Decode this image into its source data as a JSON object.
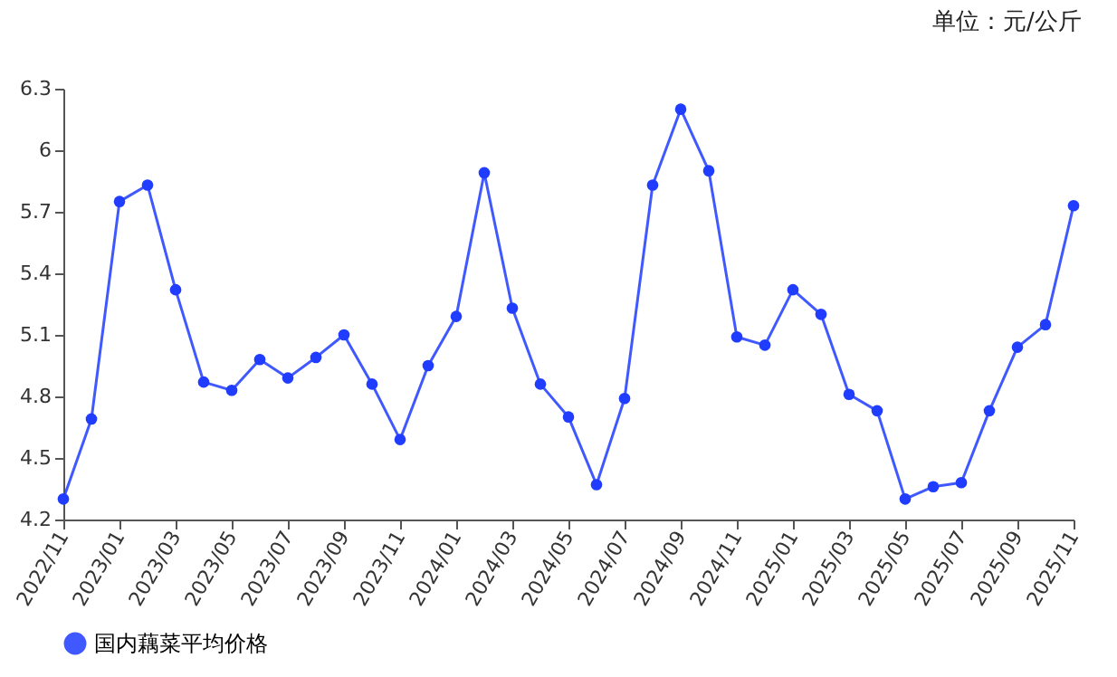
{
  "chart_data": {
    "type": "line",
    "annotations": [
      "单位：元/公斤"
    ],
    "categories": [
      "2022/11",
      null,
      "2023/01",
      null,
      "2023/03",
      null,
      "2023/05",
      null,
      "2023/07",
      null,
      "2023/09",
      null,
      "2023/11",
      null,
      "2024/01",
      null,
      "2024/03",
      null,
      "2024/05",
      null,
      "2024/07",
      null,
      "2024/09",
      null,
      "2024/11",
      null,
      "2025/01",
      null,
      "2025/03",
      null,
      "2025/05",
      null,
      "2025/07",
      null,
      "2025/09",
      null,
      "2025/11"
    ],
    "series": [
      {
        "name": "国内藕菜平均价格",
        "color": "#1f3cff",
        "values": [
          4.3,
          4.69,
          5.75,
          5.83,
          5.32,
          4.87,
          4.83,
          4.98,
          4.89,
          4.99,
          5.1,
          4.86,
          4.59,
          4.95,
          5.19,
          5.89,
          5.23,
          4.86,
          4.7,
          4.37,
          4.79,
          5.83,
          6.2,
          5.9,
          5.09,
          5.05,
          5.32,
          5.2,
          4.81,
          4.73,
          4.3,
          4.36,
          4.38,
          4.73,
          5.04,
          5.15,
          5.73
        ]
      }
    ],
    "ylim": [
      4.2,
      6.3
    ],
    "yticks": [
      4.2,
      4.5,
      4.8,
      5.1,
      5.4,
      5.7,
      6,
      6.3
    ],
    "legend": "bottom",
    "marker": "circle"
  }
}
